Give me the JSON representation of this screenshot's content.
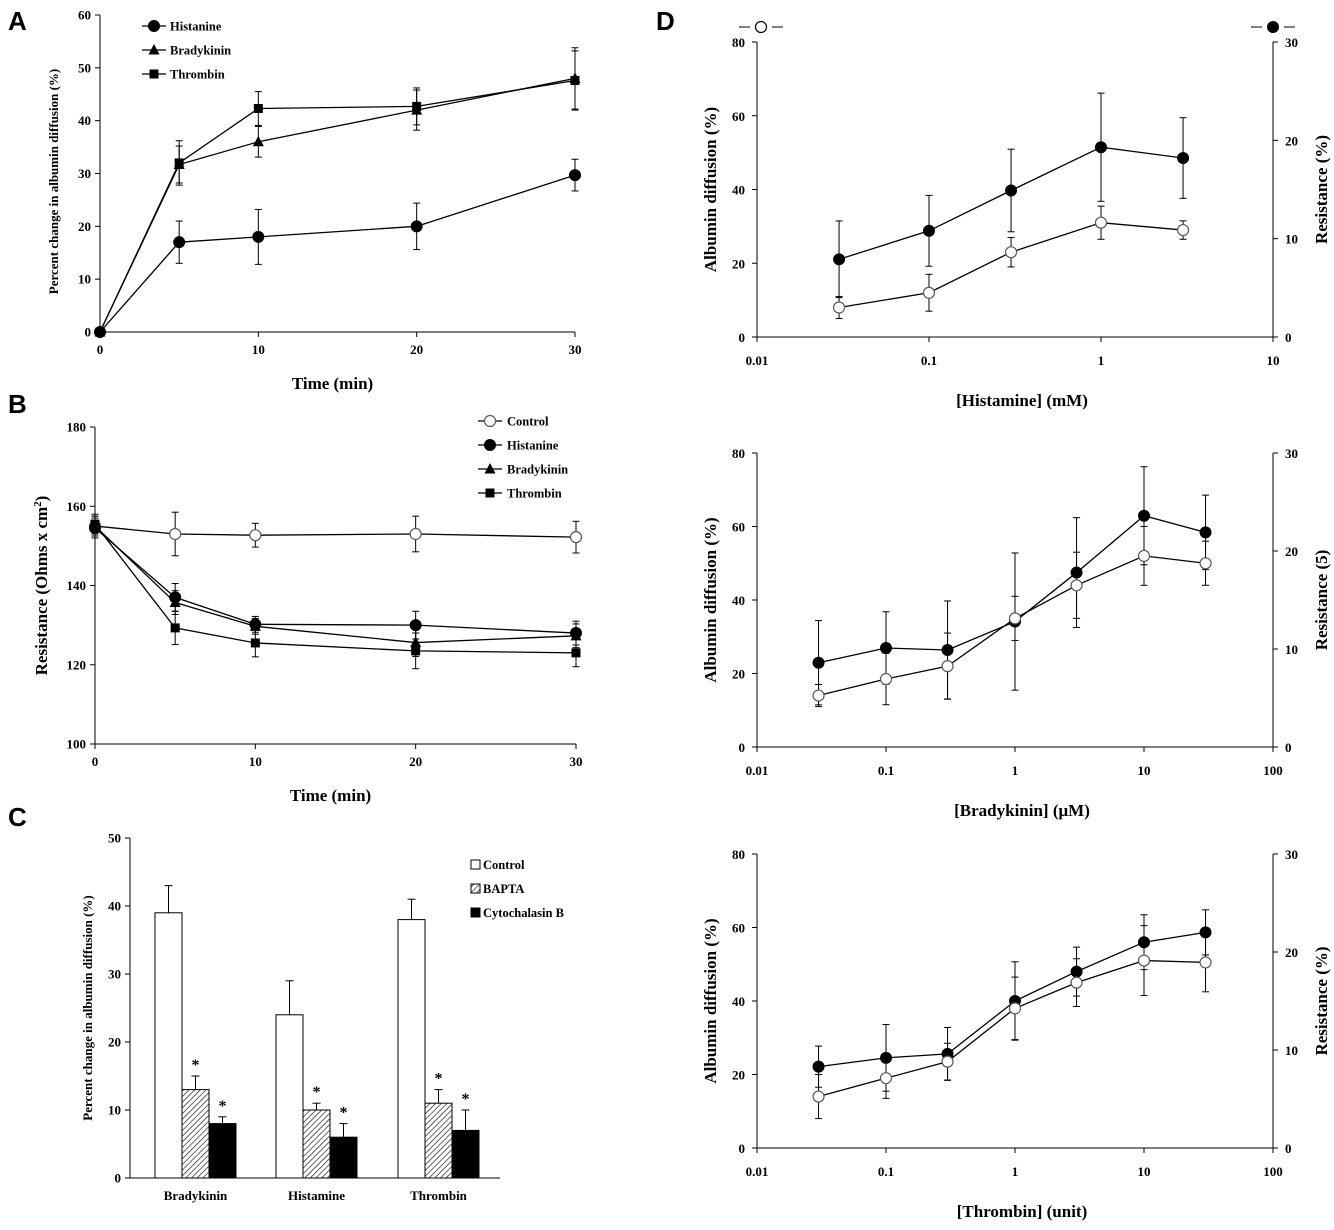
{
  "panels": {
    "A": "A",
    "B": "B",
    "C": "C",
    "D": "D"
  },
  "chart_data": [
    {
      "id": "A",
      "type": "line",
      "title": "",
      "xlabel": "Time (min)",
      "ylabel": "Percent change in albumin diffusion (%)",
      "xlim": [
        0,
        30
      ],
      "ylim": [
        0,
        60
      ],
      "x_ticks": [
        "0",
        "10",
        "20",
        "30"
      ],
      "y_ticks": [
        "0",
        "10",
        "20",
        "30",
        "40",
        "50",
        "60"
      ],
      "legend": [
        "Histanine",
        "Bradykinin",
        "Thrombin"
      ],
      "series": [
        {
          "name": "Histanine",
          "marker": "circle-filled",
          "x": [
            0,
            5,
            10,
            20,
            30
          ],
          "values": [
            0,
            17,
            18,
            20,
            29.7
          ],
          "err": [
            0,
            4,
            5.2,
            4.4,
            3
          ]
        },
        {
          "name": "Bradykinin",
          "marker": "triangle-filled",
          "x": [
            0,
            5,
            10,
            20,
            30
          ],
          "values": [
            0,
            31.7,
            36,
            42,
            48
          ],
          "err": [
            0,
            3.5,
            2.9,
            3.8,
            5.8
          ]
        },
        {
          "name": "Thrombin",
          "marker": "square-filled",
          "x": [
            0,
            5,
            10,
            20,
            30
          ],
          "values": [
            0,
            32,
            42.3,
            42.7,
            47.6
          ],
          "err": [
            0,
            4.2,
            3.2,
            3.5,
            5.6
          ]
        }
      ]
    },
    {
      "id": "B",
      "type": "line",
      "title": "",
      "xlabel": "Time (min)",
      "ylabel": "Resistance (Ohms x cm2)",
      "ylabel_main": "Resistance (Ohms x cm",
      "ylabel_sup": "2",
      "ylabel_end": ")",
      "xlim": [
        0,
        30
      ],
      "ylim": [
        100,
        180
      ],
      "x_ticks": [
        "0",
        "10",
        "20",
        "30"
      ],
      "y_ticks": [
        "100",
        "120",
        "140",
        "160",
        "180"
      ],
      "legend": [
        "Control",
        "Histanine",
        "Bradykinin",
        "Thrombin"
      ],
      "series": [
        {
          "name": "Control",
          "marker": "circle-open",
          "x": [
            0,
            5,
            10,
            20,
            30
          ],
          "values": [
            155,
            153,
            152.7,
            153,
            152.2
          ],
          "err": [
            2.5,
            5.5,
            3,
            4.5,
            4
          ]
        },
        {
          "name": "Histanine",
          "marker": "circle-filled",
          "x": [
            0,
            5,
            10,
            20,
            30
          ],
          "values": [
            154.5,
            137,
            130.2,
            130,
            128
          ],
          "err": [
            2.5,
            3.5,
            2,
            3.5,
            3
          ]
        },
        {
          "name": "Bradykinin",
          "marker": "triangle-filled",
          "x": [
            0,
            5,
            10,
            20,
            30
          ],
          "values": [
            155,
            135.7,
            129.7,
            125.6,
            127.3
          ],
          "err": [
            2.5,
            3,
            2,
            3.5,
            3
          ]
        },
        {
          "name": "Thrombin",
          "marker": "square-filled",
          "x": [
            0,
            5,
            10,
            20,
            30
          ],
          "values": [
            155.5,
            129.3,
            125.5,
            123.5,
            123
          ],
          "err": [
            2.5,
            4.2,
            3.5,
            4.5,
            3.5
          ]
        }
      ]
    },
    {
      "id": "C",
      "type": "bar",
      "title": "",
      "xlabel": "",
      "ylabel": "Percent change in albumin diffusion (%)",
      "ylim": [
        0,
        50
      ],
      "y_ticks": [
        "0",
        "10",
        "20",
        "30",
        "40",
        "50"
      ],
      "categories": [
        "Bradykinin",
        "Histamine",
        "Thrombin"
      ],
      "legend": [
        "Control",
        "BAPTA",
        "Cytochalasin B"
      ],
      "significance_mark": "*",
      "series": [
        {
          "name": "Control",
          "values": [
            39,
            24,
            38
          ],
          "err": [
            4,
            5,
            3
          ],
          "significant": [
            false,
            false,
            false
          ]
        },
        {
          "name": "BAPTA",
          "values": [
            13,
            10,
            11
          ],
          "err": [
            2,
            1,
            2
          ],
          "significant": [
            true,
            true,
            true
          ]
        },
        {
          "name": "Cytochalasin B",
          "values": [
            8,
            6,
            7
          ],
          "err": [
            1,
            2,
            3
          ],
          "significant": [
            true,
            true,
            true
          ]
        }
      ]
    },
    {
      "id": "D1",
      "type": "line",
      "title": "",
      "xlabel": "[Histamine] (mM)",
      "ylabel": "Albumin diffusion (%)",
      "ylabel_right": "Resistance (%)",
      "xscale": "log",
      "xlim": [
        0.01,
        10
      ],
      "ylim": [
        0,
        80
      ],
      "ylim_right": [
        0,
        30
      ],
      "x_ticks": [
        "0.01",
        "0.1",
        "1",
        "10"
      ],
      "y_ticks": [
        "0",
        "20",
        "40",
        "60",
        "80"
      ],
      "y_ticks_right": [
        "0",
        "10",
        "20",
        "30"
      ],
      "legend_left_marker": "open circle",
      "legend_right_marker": "filled circle",
      "series": [
        {
          "name": "Albumin diffusion",
          "marker": "circle-open",
          "axis": "left",
          "x": [
            0.03,
            0.1,
            0.3,
            1,
            3
          ],
          "values": [
            8,
            12,
            23,
            31,
            29
          ],
          "err": [
            3,
            5,
            4,
            4.5,
            2.5
          ]
        },
        {
          "name": "Resistance",
          "marker": "circle-filled",
          "axis": "right",
          "x": [
            0.03,
            0.1,
            0.3,
            1,
            3
          ],
          "values": [
            7.9,
            10.8,
            14.9,
            19.3,
            18.2
          ],
          "err": [
            3.9,
            3.6,
            4.2,
            5.5,
            4.1
          ]
        }
      ]
    },
    {
      "id": "D2",
      "type": "line",
      "title": "",
      "xlabel": "[Bradykinin] (μM)",
      "ylabel": "Albumin diffusion (%)",
      "ylabel_right": "Resistance (5)",
      "xscale": "log",
      "xlim": [
        0.01,
        100
      ],
      "ylim": [
        0,
        80
      ],
      "ylim_right": [
        0,
        30
      ],
      "x_ticks": [
        "0.01",
        "0.1",
        "1",
        "10",
        "100"
      ],
      "y_ticks": [
        "0",
        "20",
        "40",
        "60",
        "80"
      ],
      "y_ticks_right": [
        "0",
        "10",
        "20",
        "30"
      ],
      "series": [
        {
          "name": "Albumin diffusion",
          "marker": "circle-open",
          "axis": "left",
          "x": [
            0.03,
            0.1,
            0.3,
            1,
            3,
            10,
            30
          ],
          "values": [
            14,
            18.5,
            22,
            35,
            44,
            52,
            50
          ],
          "err": [
            3,
            7,
            9,
            6,
            9,
            8,
            6
          ]
        },
        {
          "name": "Resistance",
          "marker": "circle-filled",
          "axis": "right",
          "x": [
            0.03,
            0.1,
            0.3,
            1,
            3,
            10,
            30
          ],
          "values": [
            8.6,
            10.1,
            9.9,
            12.8,
            17.8,
            23.6,
            21.9
          ],
          "err": [
            4.3,
            3.7,
            5,
            7,
            5.6,
            5,
            3.8
          ]
        }
      ]
    },
    {
      "id": "D3",
      "type": "line",
      "title": "",
      "xlabel": "[Thrombin] (unit)",
      "ylabel": "Albumin diffusion (%)",
      "ylabel_right": "Resistance (%)",
      "xscale": "log",
      "xlim": [
        0.01,
        100
      ],
      "ylim": [
        0,
        80
      ],
      "ylim_right": [
        0,
        30
      ],
      "x_ticks": [
        "0.01",
        "0.1",
        "1",
        "10",
        "100"
      ],
      "y_ticks": [
        "0",
        "20",
        "40",
        "60",
        "80"
      ],
      "y_ticks_right": [
        "0",
        "10",
        "20",
        "30"
      ],
      "series": [
        {
          "name": "Albumin diffusion",
          "marker": "circle-open",
          "axis": "left",
          "x": [
            0.03,
            0.1,
            0.3,
            1,
            3,
            10,
            30
          ],
          "values": [
            14,
            19,
            23.5,
            38,
            45,
            51,
            50.5
          ],
          "err": [
            6,
            5.5,
            5,
            8.5,
            6.5,
            9.5,
            8
          ]
        },
        {
          "name": "Resistance",
          "marker": "circle-filled",
          "axis": "right",
          "x": [
            0.03,
            0.1,
            0.3,
            1,
            3,
            10,
            30
          ],
          "values": [
            8.3,
            9.2,
            9.6,
            15,
            18,
            21,
            22
          ],
          "err": [
            2.1,
            3.4,
            2.7,
            4,
            2.5,
            2.8,
            2.3
          ]
        }
      ]
    }
  ]
}
